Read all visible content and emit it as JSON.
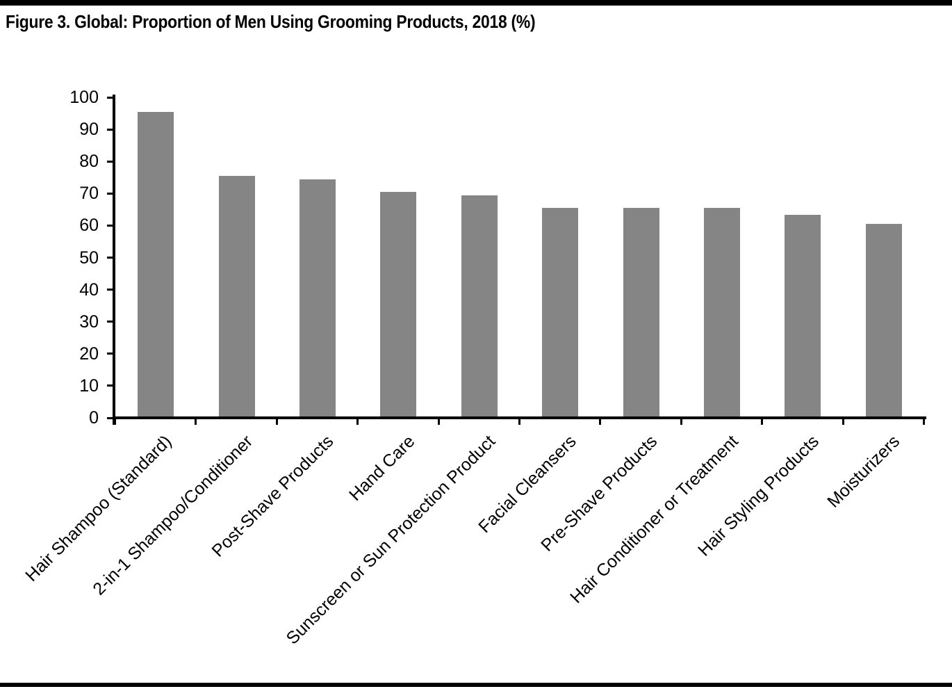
{
  "chart_data": {
    "type": "bar",
    "title": "Figure 3. Global: Proportion of Men Using Grooming Products, 2018 (%)",
    "categories": [
      "Hair Shampoo (Standard)",
      "2-in-1 Shampoo/Conditioner",
      "Post-Shave Products",
      "Hand Care",
      "Sunscreen or Sun Protection Product",
      "Facial Cleansers",
      "Pre-Shave Products",
      "Hair Conditioner or Treatment",
      "Hair Styling Products",
      "Moisturizers"
    ],
    "values": [
      95,
      75,
      74,
      70,
      69,
      65,
      65,
      65,
      63,
      60
    ],
    "xlabel": "",
    "ylabel": "",
    "ylim": [
      0,
      100
    ],
    "yticks": [
      0,
      10,
      20,
      30,
      40,
      50,
      60,
      70,
      80,
      90,
      100
    ],
    "grid": false,
    "legend": false,
    "bar_color": "#858585",
    "axis_color": "#000000",
    "rule_color": "#000000"
  }
}
